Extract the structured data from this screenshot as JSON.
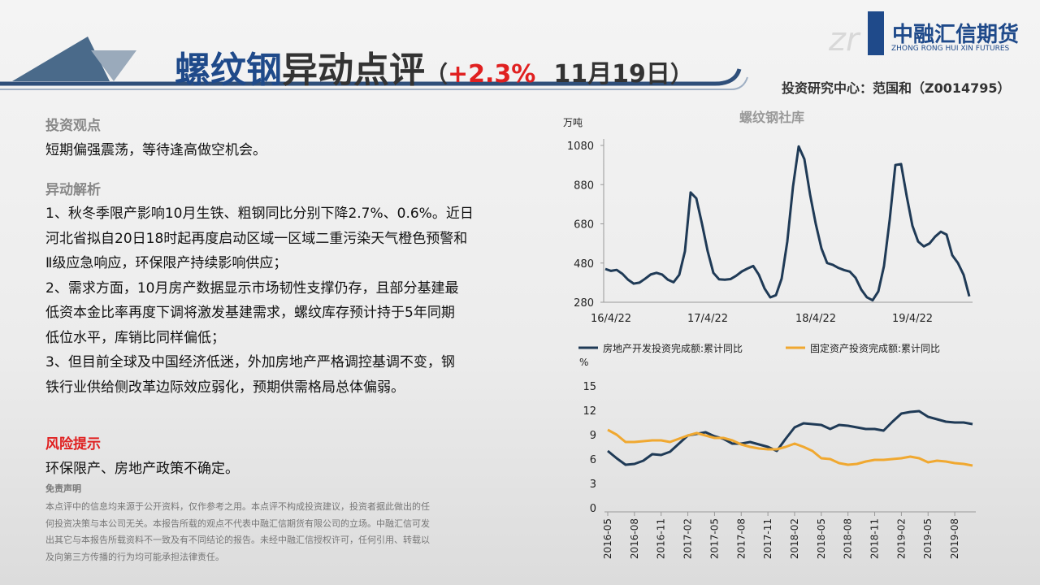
{
  "header": {
    "title_a": "螺纹钢",
    "title_b": "异动点评",
    "open": "（",
    "change": "+2.3%",
    "date": "11月19日",
    "close": "）",
    "logo": "中融汇信期货",
    "logo_en": "ZHONG RONG HUI XIN FUTURES",
    "author": "投资研究中心：范国和（Z0014795）"
  },
  "body": {
    "view_title": "投资观点",
    "view": "短期偏强震荡，等待逢高做空机会。",
    "analysis_title": "异动解析",
    "analysis": [
      "1、秋冬季限产影响10月生铁、粗钢同比分别下降2.7%、0.6%。近日",
      "河北省拟自20日18时起再度启动区域一区域二重污染天气橙色预警和",
      "Ⅱ级应急响应，环保限产持续影响供应；",
      "2、需求方面，10月房产数据显示市场韧性支撑仍存，且部分基建最",
      "低资本金比率再度下调将激发基建需求，螺纹库存预计持于5年同期",
      "低位水平，库销比同样偏低；",
      "3、但目前全球及中国经济低迷，外加房地产严格调控基调不变，钢",
      "铁行业供给侧改革边际效应弱化，预期供需格局总体偏弱。"
    ],
    "risk_title": "风险提示",
    "risk": "环保限产、房地产政策不确定。",
    "disclaimer_title": "免责声明",
    "disclaimer": [
      "本点评中的信息均来源于公开资料，仅作参考之用。本点评不构成投资建议，投资者据此做出的任",
      "何投资决策与本公司无关。本报告所载的观点不代表中融汇信期货有限公司的立场。中融汇信可发",
      "出其它与本报告所载资料不一致及有不同结论的报告。未经中融汇信授权许可，任何引用、转载以",
      "及向第三方传播的行为均可能承担法律责任。"
    ]
  },
  "chart_data": [
    {
      "type": "line",
      "title": "螺纹钢社库",
      "y_unit": "万吨",
      "color": "#1f3a56",
      "categories": [
        null,
        "16/4/22",
        null,
        null,
        null,
        null,
        null,
        null,
        null,
        null,
        null,
        null,
        null,
        null,
        null,
        null,
        null,
        null,
        "17/4/22",
        null,
        null,
        null,
        null,
        null,
        null,
        null,
        null,
        null,
        null,
        null,
        null,
        null,
        null,
        null,
        null,
        null,
        null,
        "18/4/22",
        null,
        null,
        null,
        null,
        null,
        null,
        null,
        null,
        null,
        null,
        null,
        null,
        null,
        null,
        null,
        null,
        "19/4/22",
        null,
        null,
        null,
        null,
        null,
        null,
        null,
        null,
        null,
        null
      ],
      "values": [
        450,
        440,
        445,
        425,
        395,
        375,
        380,
        400,
        422,
        430,
        421,
        395,
        382,
        420,
        540,
        840,
        810,
        680,
        540,
        430,
        397,
        395,
        398,
        415,
        437,
        452,
        465,
        420,
        350,
        305,
        316,
        400,
        590,
        870,
        1075,
        1010,
        830,
        680,
        555,
        480,
        471,
        455,
        444,
        436,
        405,
        345,
        305,
        290,
        335,
        465,
        700,
        980,
        985,
        820,
        670,
        590,
        565,
        580,
        615,
        640,
        625,
        520,
        480,
        420,
        310
      ],
      "ylim": [
        280,
        1080
      ],
      "yticks": [
        280,
        480,
        680,
        880,
        1080
      ]
    },
    {
      "type": "line",
      "y_unit": "%",
      "legend": "top",
      "categories": [
        "2016-05",
        null,
        null,
        "2016-08",
        null,
        null,
        "2016-11",
        null,
        null,
        "2017-02",
        null,
        null,
        "2017-05",
        null,
        null,
        "2017-08",
        null,
        null,
        "2017-11",
        null,
        null,
        "2018-02",
        null,
        null,
        "2018-05",
        null,
        null,
        "2018-08",
        null,
        null,
        "2018-11",
        null,
        null,
        "2019-02",
        null,
        null,
        "2019-05",
        null,
        null,
        "2019-08",
        null,
        null
      ],
      "series": [
        {
          "name": "房地产开发投资完成额:累计同比",
          "color": "#1f3a56",
          "values": [
            7.0,
            6.1,
            5.3,
            5.4,
            5.8,
            6.6,
            6.5,
            6.9,
            7.9,
            8.9,
            9.1,
            9.3,
            8.8,
            8.5,
            7.9,
            7.9,
            8.1,
            7.8,
            7.5,
            7.0,
            8.5,
            9.9,
            10.4,
            10.3,
            10.2,
            9.7,
            10.2,
            10.1,
            9.9,
            9.7,
            9.7,
            9.5,
            10.6,
            11.6,
            11.8,
            11.9,
            11.2,
            10.9,
            10.6,
            10.5,
            10.5,
            10.3
          ]
        },
        {
          "name": "固定资产投资完成额:累计同比",
          "color": "#f0a830",
          "values": [
            9.6,
            9.0,
            8.1,
            8.1,
            8.2,
            8.3,
            8.3,
            8.1,
            8.5,
            8.9,
            9.2,
            8.9,
            8.6,
            8.6,
            8.3,
            7.8,
            7.5,
            7.3,
            7.2,
            7.2,
            7.5,
            7.9,
            7.5,
            7.0,
            6.1,
            6.0,
            5.5,
            5.3,
            5.4,
            5.7,
            5.9,
            5.9,
            6.0,
            6.1,
            6.3,
            6.1,
            5.6,
            5.8,
            5.7,
            5.5,
            5.4,
            5.2
          ]
        }
      ],
      "ylim": [
        0,
        15
      ],
      "yticks": [
        0,
        3,
        6,
        9,
        12,
        15
      ]
    }
  ]
}
